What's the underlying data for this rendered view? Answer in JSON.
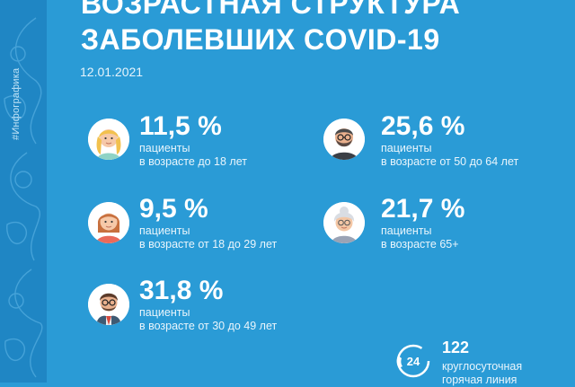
{
  "side_tag": "#Инфографика",
  "title": {
    "line1": "ВОЗРАСТНАЯ СТРУКТУРА",
    "line2": "ЗАБОЛЕВШИХ COVID-19"
  },
  "date": "12.01.2021",
  "stats": [
    {
      "percent": "11,5 %",
      "label1": "пациенты",
      "label2": "в возрасте до 18 лет",
      "icon": "girl-avatar-icon"
    },
    {
      "percent": "25,6 %",
      "label1": "пациенты",
      "label2": "в возрасте от 50 до 64 лет",
      "icon": "bearded-man-avatar-icon"
    },
    {
      "percent": "9,5 %",
      "label1": "пациенты",
      "label2": "в возрасте от 18 до 29 лет",
      "icon": "young-woman-avatar-icon"
    },
    {
      "percent": "21,7 %",
      "label1": "пациенты",
      "label2": "в возрасте 65+",
      "icon": "grandmother-avatar-icon"
    },
    {
      "percent": "31,8 %",
      "label1": "пациенты",
      "label2": "в возрасте от 30 до 49 лет",
      "icon": "man-with-glasses-avatar-icon"
    }
  ],
  "hotline": {
    "icon": "phone-24-icon",
    "badge": "24",
    "number": "122",
    "label1": "круглосуточная",
    "label2": "горячая линия"
  },
  "colors": {
    "background": "#2a9bd6",
    "side_panel": "#1f86c4",
    "text": "#ffffff"
  }
}
